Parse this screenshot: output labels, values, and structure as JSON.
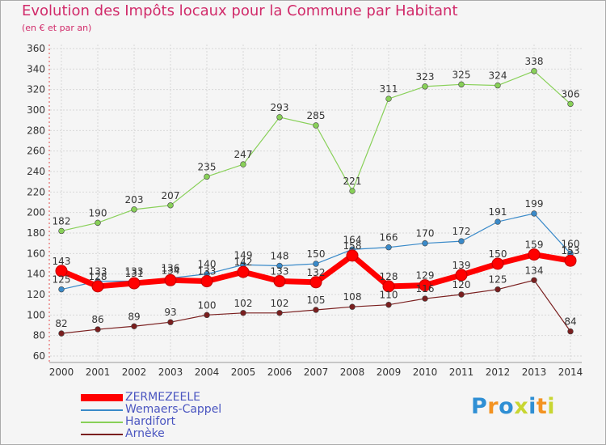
{
  "title": "Evolution des Impôts locaux pour la Commune par Habitant",
  "subtitle": "(en € et par an)",
  "logo": {
    "letters": [
      "P",
      "r",
      "o",
      "x",
      "i",
      "t",
      "i"
    ],
    "colors": [
      "#2f8fd4",
      "#f39322",
      "#2f8fd4",
      "#c8d632",
      "#2f8fd4",
      "#f39322",
      "#c8d632"
    ]
  },
  "chart_data": {
    "type": "line",
    "x": [
      2000,
      2001,
      2002,
      2003,
      2004,
      2005,
      2006,
      2007,
      2008,
      2009,
      2010,
      2011,
      2012,
      2013,
      2014
    ],
    "ylim": [
      60,
      360
    ],
    "yticks": [
      60,
      80,
      100,
      120,
      140,
      160,
      180,
      200,
      220,
      240,
      260,
      280,
      300,
      320,
      340,
      360
    ],
    "grid": true,
    "legend": "bottom-left",
    "series": [
      {
        "name": "ZERMEZEELE",
        "color": "#ff0000",
        "emphasis": true,
        "values": [
          143,
          128,
          131,
          134,
          133,
          142,
          133,
          132,
          158,
          128,
          129,
          139,
          150,
          159,
          153
        ]
      },
      {
        "name": "Wemaers-Cappel",
        "color": "#3a8ac9",
        "values": [
          125,
          133,
          133,
          136,
          140,
          149,
          148,
          150,
          164,
          166,
          170,
          172,
          191,
          199,
          160
        ]
      },
      {
        "name": "Hardifort",
        "color": "#88d058",
        "values": [
          182,
          190,
          203,
          207,
          235,
          247,
          293,
          285,
          221,
          311,
          323,
          325,
          324,
          338,
          306
        ]
      },
      {
        "name": "Arnèke",
        "color": "#7a1f1f",
        "values": [
          82,
          86,
          89,
          93,
          100,
          102,
          102,
          105,
          108,
          110,
          116,
          120,
          125,
          134,
          84
        ]
      }
    ]
  }
}
